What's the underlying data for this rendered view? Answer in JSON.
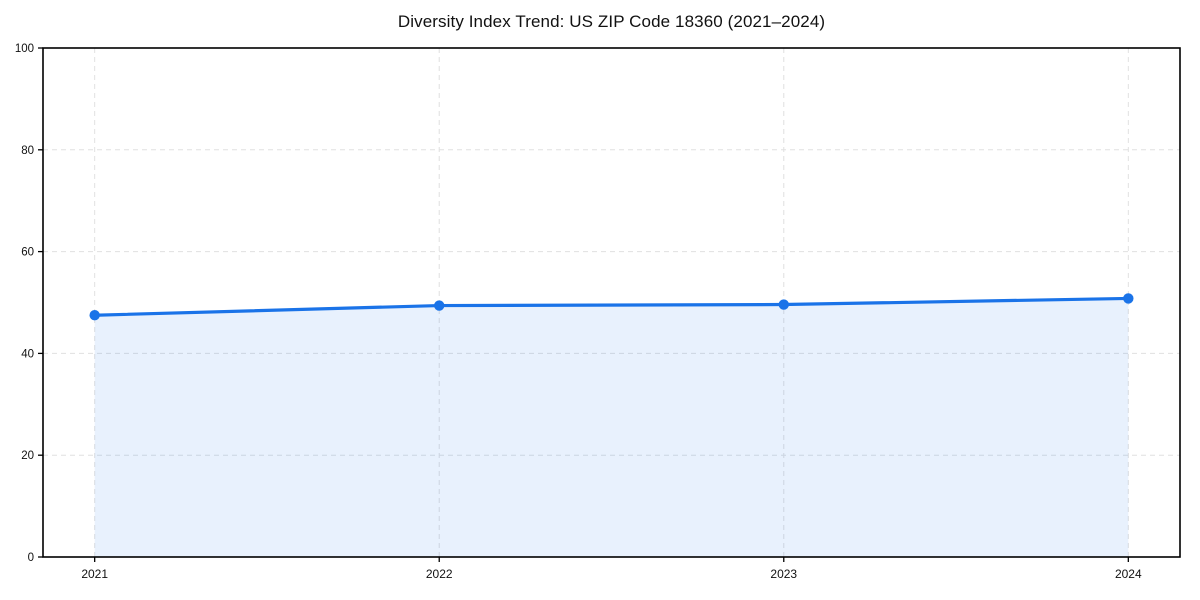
{
  "chart_data": {
    "type": "line",
    "title": "Diversity Index Trend: US ZIP Code 18360 (2021–2024)",
    "x": [
      2021,
      2022,
      2023,
      2024
    ],
    "x_tick_labels": [
      "2021",
      "2022",
      "2023",
      "2024"
    ],
    "series": [
      {
        "name": "Diversity Index",
        "values": [
          47.5,
          49.4,
          49.6,
          50.8
        ]
      }
    ],
    "xlabel": "",
    "ylabel": "",
    "ylim": [
      0,
      100
    ],
    "yticks": [
      0,
      20,
      40,
      60,
      80,
      100
    ],
    "ytick_labels": [
      "0",
      "20",
      "40",
      "60",
      "80",
      "100"
    ],
    "grid": true,
    "grid_style": "dashed",
    "legend_position": "none",
    "area_fill": true,
    "marker": "circle",
    "colors": {
      "line": "#1a73e8",
      "marker": "#1a73e8",
      "area_fill": "rgba(26,115,232,0.10)",
      "grid": "#e0e0e0",
      "spine": "#000000",
      "tick_text": "#111111",
      "background": "#ffffff"
    }
  }
}
